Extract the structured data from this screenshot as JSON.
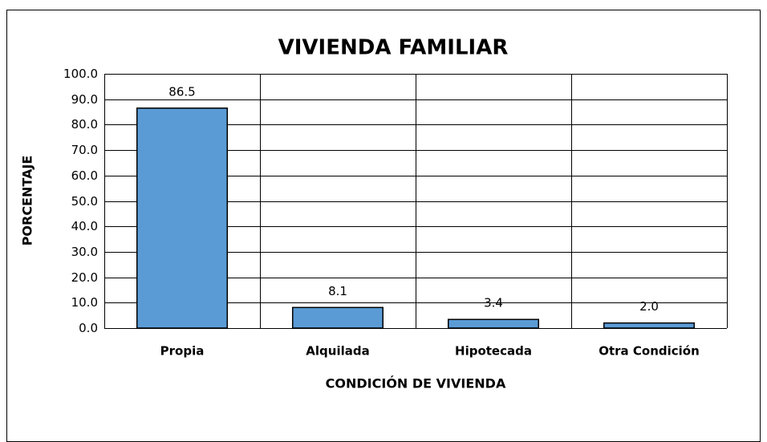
{
  "chart_data": {
    "type": "bar",
    "title": "VIVIENDA FAMILIAR",
    "x_label": "CONDICIÓN DE VIVIENDA",
    "y_label": "PORCENTAJE",
    "categories": [
      "Propia",
      "Alquilada",
      "Hipotecada",
      "Otra Condición"
    ],
    "values": [
      86.5,
      8.1,
      3.4,
      2.0
    ],
    "value_labels": [
      "86.5",
      "8.1",
      "3.4",
      "2.0"
    ],
    "color": "#5b9bd5",
    "ylim": [
      0,
      100
    ],
    "yticks": [
      {
        "value": 0,
        "label": "0.0"
      },
      {
        "value": 10,
        "label": "10.0"
      },
      {
        "value": 20,
        "label": "20.0"
      },
      {
        "value": 30,
        "label": "30.0"
      },
      {
        "value": 40,
        "label": "40.0"
      },
      {
        "value": 50,
        "label": "50.0"
      },
      {
        "value": 60,
        "label": "60.0"
      },
      {
        "value": 70,
        "label": "70.0"
      },
      {
        "value": 80,
        "label": "80.0"
      },
      {
        "value": 90,
        "label": "90.0"
      },
      {
        "value": 100,
        "label": "100.0"
      }
    ],
    "grid": true
  }
}
